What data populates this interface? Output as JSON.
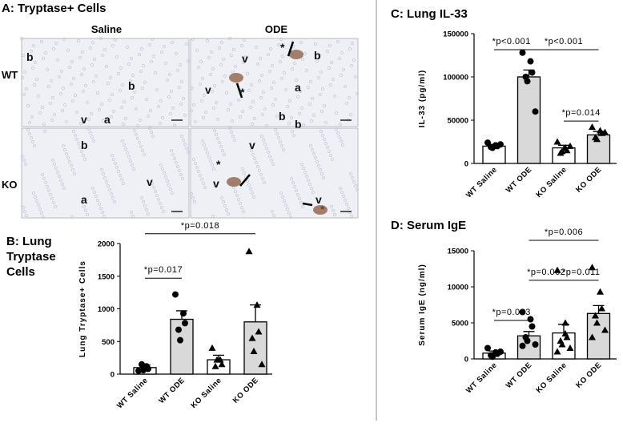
{
  "panel_a": {
    "title": "A: Tryptase+ Cells",
    "columns": [
      "Saline",
      "ODE"
    ],
    "rows": [
      "WT",
      "KO"
    ],
    "images": [
      {
        "labels": [
          "b",
          "b",
          "v",
          "a"
        ]
      },
      {
        "labels": [
          "b",
          "v",
          "*",
          "v",
          "*",
          "a",
          "b",
          "b"
        ]
      },
      {
        "labels": [
          "b",
          "v",
          "a"
        ]
      },
      {
        "labels": [
          "v",
          "*",
          "v",
          "v",
          "*"
        ]
      }
    ]
  },
  "chart_data": [
    {
      "type": "bar",
      "title": "B: Lung Tryptase Cells",
      "ylabel": "Lung Tryptase+ Cells",
      "categories": [
        "WT Saline",
        "WT ODE",
        "KO Saline",
        "KO ODE"
      ],
      "values": [
        100,
        840,
        220,
        800
      ],
      "errors": [
        40,
        130,
        70,
        260
      ],
      "colors": [
        "#ffffff",
        "#d9d9d9",
        "#ffffff",
        "#d9d9d9"
      ],
      "markers": [
        "circle",
        "circle",
        "triangle",
        "triangle"
      ],
      "points": [
        [
          50,
          120,
          80,
          150,
          60
        ],
        [
          1220,
          930,
          780,
          680,
          520
        ],
        [
          400,
          220,
          150,
          120,
          220
        ],
        [
          1880,
          1060,
          650,
          550,
          350,
          150
        ]
      ],
      "ylim": [
        0,
        2000
      ],
      "yticks": [
        0,
        500,
        1000,
        1500,
        2000
      ],
      "annotations": [
        {
          "text": "*p=0.017",
          "from": 0,
          "to": 1,
          "y": 1470
        },
        {
          "text": "*p=0.018",
          "from": 0,
          "to": 3,
          "y": 2150
        }
      ]
    },
    {
      "type": "bar",
      "title": "C: Lung IL-33",
      "ylabel": "IL-33 (pg/ml)",
      "categories": [
        "WT Saline",
        "WT ODE",
        "KO Saline",
        "KO ODE"
      ],
      "values": [
        20000,
        100000,
        18000,
        33000
      ],
      "errors": [
        2000,
        8000,
        3000,
        4000
      ],
      "colors": [
        "#ffffff",
        "#d9d9d9",
        "#ffffff",
        "#d9d9d9"
      ],
      "markers": [
        "circle",
        "circle",
        "triangle",
        "triangle"
      ],
      "points": [
        [
          24000,
          21000,
          20000,
          19000,
          18000,
          22000
        ],
        [
          128000,
          118000,
          105000,
          100000,
          95000,
          60000
        ],
        [
          25000,
          18000,
          15000,
          12000,
          14000,
          20000
        ],
        [
          42000,
          38000,
          35000,
          30000,
          28000,
          36000
        ]
      ],
      "ylim": [
        0,
        150000
      ],
      "yticks": [
        0,
        50000,
        100000,
        150000
      ],
      "annotations": [
        {
          "text": "*p<0.001",
          "from": 0,
          "to": 1,
          "y": 131500
        },
        {
          "text": "*p<0.001",
          "from": 1,
          "to": 3,
          "y": 131500
        },
        {
          "text": "*p=0.014",
          "from": 2,
          "to": 3,
          "y": 49000
        }
      ]
    },
    {
      "type": "bar",
      "title": "D: Serum IgE",
      "ylabel": "Serum IgE (ng/ml)",
      "categories": [
        "WT Saline",
        "WT ODE",
        "KO Saline",
        "KO ODE"
      ],
      "values": [
        800,
        3200,
        3600,
        6300
      ],
      "errors": [
        300,
        600,
        1200,
        1100
      ],
      "colors": [
        "#ffffff",
        "#d9d9d9",
        "#ffffff",
        "#d9d9d9"
      ],
      "markers": [
        "circle",
        "circle",
        "triangle",
        "triangle"
      ],
      "points": [
        [
          1500,
          900,
          700,
          500,
          300,
          1000
        ],
        [
          6500,
          5500,
          4500,
          3000,
          2500,
          2000,
          1800
        ],
        [
          12300,
          5000,
          3000,
          2500,
          2000,
          1500,
          1000,
          3500
        ],
        [
          12700,
          9300,
          7000,
          6000,
          5000,
          4000,
          3000
        ]
      ],
      "ylim": [
        0,
        15000
      ],
      "yticks": [
        0,
        5000,
        10000,
        15000
      ],
      "annotations": [
        {
          "text": "*p=0.003",
          "from": 0,
          "to": 1,
          "y": 5330
        },
        {
          "text": "*p=0.002",
          "from": 1,
          "to": 2,
          "y": 10900
        },
        {
          "text": "*p=0.011",
          "from": 2,
          "to": 3,
          "y": 10900
        },
        {
          "text": "*p=0.006",
          "from": 1,
          "to": 3,
          "y": 16440
        }
      ]
    }
  ]
}
